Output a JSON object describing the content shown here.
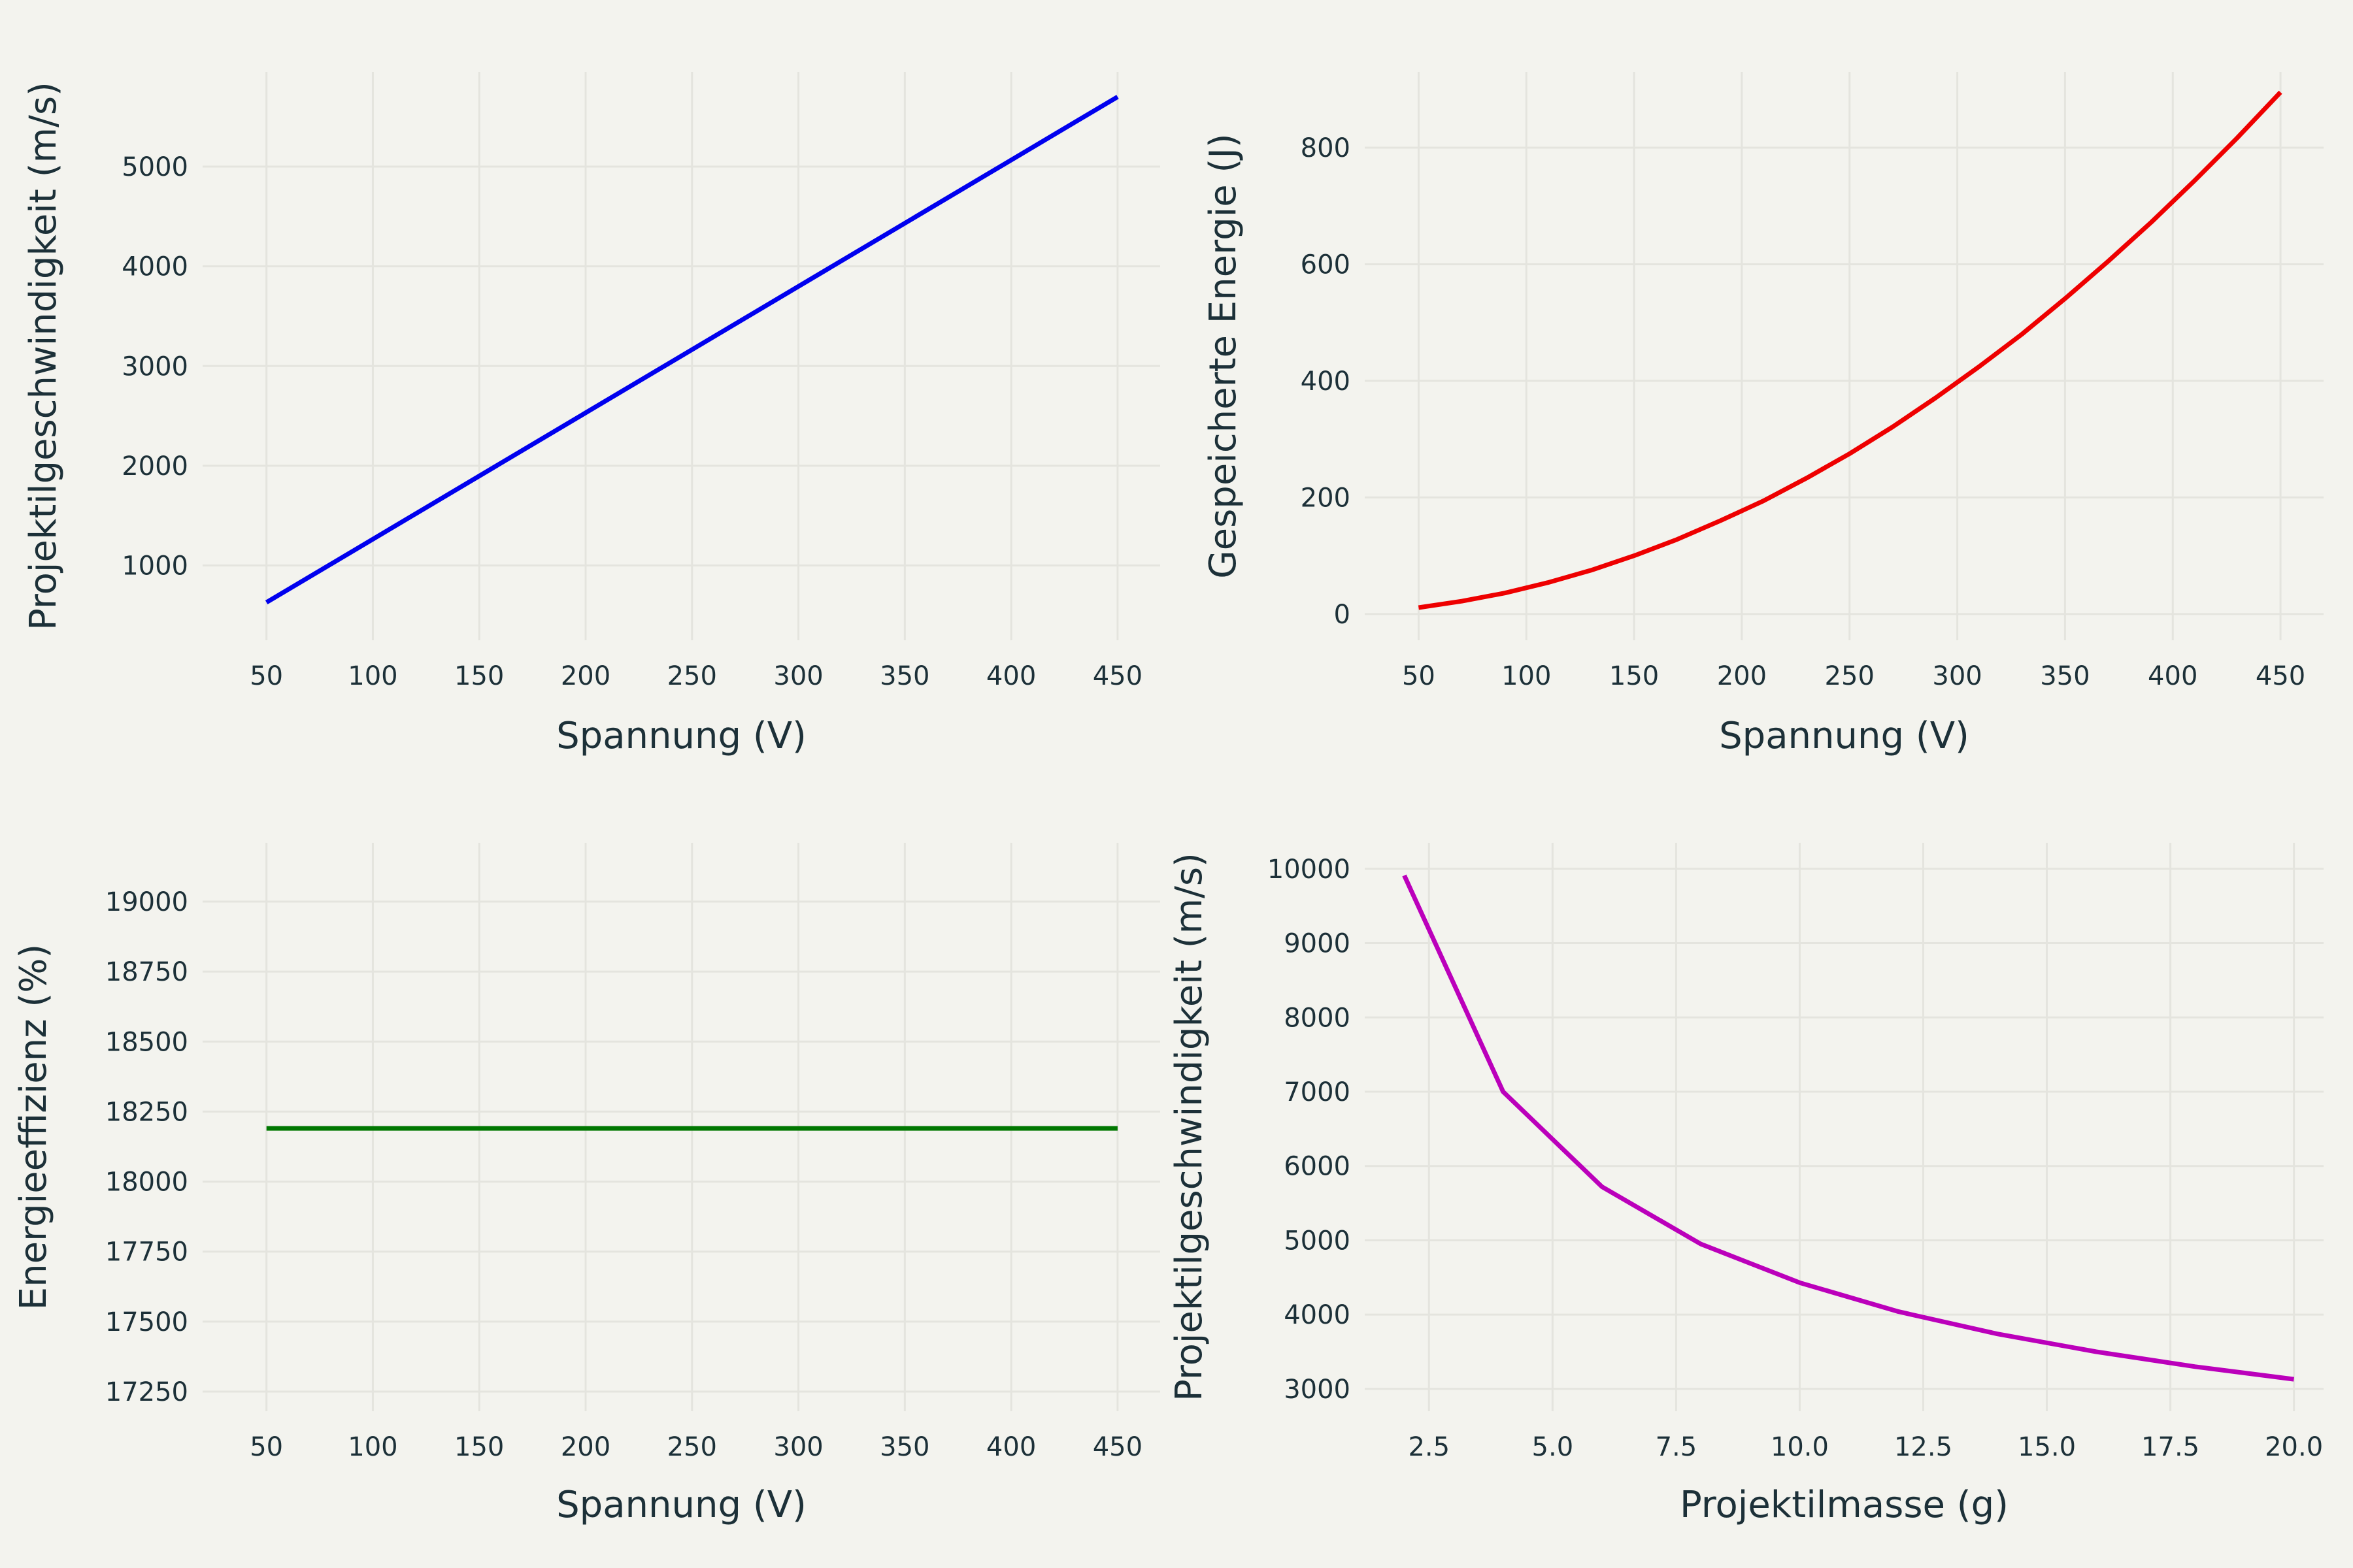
{
  "colors": {
    "background": "#f3f3ee",
    "grid": "#e4e4de",
    "text": "#1c3038"
  },
  "chart_data": [
    {
      "type": "line",
      "title": "",
      "xlabel": "Spannung (V)",
      "ylabel": "Projektilgeschwindigkeit (m/s)",
      "xlim": [
        20,
        470
      ],
      "ylim": [
        250,
        5950
      ],
      "x_ticks": [
        50,
        100,
        150,
        200,
        250,
        300,
        350,
        400,
        450
      ],
      "y_ticks": [
        1000,
        2000,
        3000,
        4000,
        5000
      ],
      "x_tick_labels": [
        "50",
        "100",
        "150",
        "200",
        "250",
        "300",
        "350",
        "400",
        "450"
      ],
      "y_tick_labels": [
        "1000",
        "2000",
        "3000",
        "4000",
        "5000"
      ],
      "grid": true,
      "series": [
        {
          "color": "#0000ee",
          "x": [
            50,
            450
          ],
          "y": [
            630,
            5700
          ]
        }
      ]
    },
    {
      "type": "line",
      "title": "",
      "xlabel": "Spannung (V)",
      "ylabel": "Gespeicherte Energie (J)",
      "xlim": [
        25,
        470
      ],
      "ylim": [
        -45,
        930
      ],
      "x_ticks": [
        50,
        100,
        150,
        200,
        250,
        300,
        350,
        400,
        450
      ],
      "y_ticks": [
        0,
        200,
        400,
        600,
        800
      ],
      "x_tick_labels": [
        "50",
        "100",
        "150",
        "200",
        "250",
        "300",
        "350",
        "400",
        "450"
      ],
      "y_tick_labels": [
        "0",
        "200",
        "400",
        "600",
        "800"
      ],
      "grid": true,
      "series": [
        {
          "color": "#ee0000",
          "x": [
            50,
            70,
            90,
            110,
            130,
            150,
            170,
            190,
            210,
            230,
            250,
            270,
            290,
            310,
            330,
            350,
            370,
            390,
            410,
            430,
            450
          ],
          "y": [
            11,
            22,
            36,
            54,
            75,
            100,
            128,
            160,
            194,
            233,
            275,
            321,
            371,
            424,
            480,
            541,
            605,
            672,
            743,
            817,
            895
          ]
        }
      ]
    },
    {
      "type": "line",
      "title": "",
      "xlabel": "Spannung (V)",
      "ylabel": "Energieeffizienz (%)",
      "xlim": [
        20,
        470
      ],
      "ylim": [
        17180,
        19210
      ],
      "x_ticks": [
        50,
        100,
        150,
        200,
        250,
        300,
        350,
        400,
        450
      ],
      "y_ticks": [
        17250,
        17500,
        17750,
        18000,
        18250,
        18500,
        18750,
        19000
      ],
      "x_tick_labels": [
        "50",
        "100",
        "150",
        "200",
        "250",
        "300",
        "350",
        "400",
        "450"
      ],
      "y_tick_labels": [
        "17250",
        "17500",
        "17750",
        "18000",
        "18250",
        "18500",
        "18750",
        "19000"
      ],
      "grid": true,
      "series": [
        {
          "color": "#007700",
          "x": [
            50,
            450
          ],
          "y": [
            18190,
            18190
          ]
        }
      ]
    },
    {
      "type": "line",
      "title": "",
      "xlabel": "Projektilmasse (g)",
      "ylabel": "Projektilgeschwindigkeit (m/s)",
      "xlim": [
        1.2,
        20.6
      ],
      "ylim": [
        2700,
        10350
      ],
      "x_ticks": [
        2.5,
        5,
        7.5,
        10,
        12.5,
        15,
        17.5,
        20
      ],
      "y_ticks": [
        3000,
        4000,
        5000,
        6000,
        7000,
        8000,
        9000,
        10000
      ],
      "x_tick_labels": [
        "2.5",
        "5.0",
        "7.5",
        "10.0",
        "12.5",
        "15.0",
        "17.5",
        "20.0"
      ],
      "y_tick_labels": [
        "3000",
        "4000",
        "5000",
        "6000",
        "7000",
        "8000",
        "9000",
        "10000"
      ],
      "grid": true,
      "series": [
        {
          "color": "#bb00bb",
          "x": [
            2,
            4,
            6,
            8,
            10,
            12,
            14,
            16,
            18,
            20
          ],
          "y": [
            9910,
            7000,
            5720,
            4950,
            4430,
            4040,
            3740,
            3500,
            3300,
            3130
          ]
        }
      ]
    }
  ]
}
